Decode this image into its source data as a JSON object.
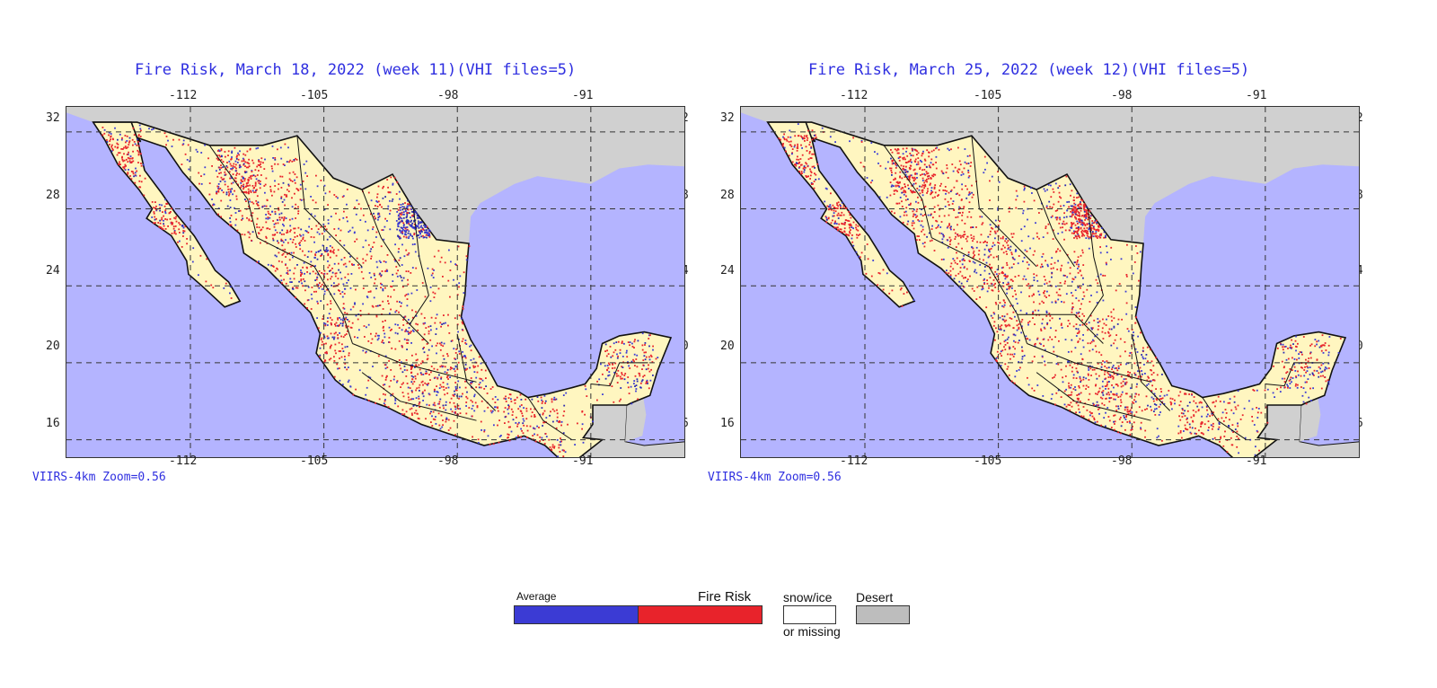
{
  "maps": [
    {
      "title": "Fire Risk, March 18, 2022 (week 11)(VHI files=5)",
      "footnote": "VIIRS-4km Zoom=0.56",
      "lon_ticks": [
        "-112",
        "-105",
        "-98",
        "-91"
      ],
      "lat_ticks": [
        "32",
        "28",
        "24",
        "20",
        "16"
      ]
    },
    {
      "title": "Fire Risk, March 25, 2022 (week 12)(VHI files=5)",
      "footnote": "VIIRS-4km Zoom=0.56",
      "lon_ticks": [
        "-112",
        "-105",
        "-98",
        "-91"
      ],
      "lat_ticks": [
        "32",
        "28",
        "24",
        "20",
        "16"
      ]
    }
  ],
  "map_extent": {
    "lon_min": -118.5,
    "lon_max": -86.0,
    "lat_min": 15.0,
    "lat_max": 33.3
  },
  "colors": {
    "water": "#b4b4ff",
    "land": "#fff6c0",
    "desert": "#d0d0d0",
    "average": "#3b3bd4",
    "fire_risk": "#e8232b",
    "snow_ice": "#ffffff"
  },
  "legend": {
    "average": "Average",
    "fire_risk": "Fire Risk",
    "snow_ice": "snow/ice",
    "or_missing": "or missing",
    "desert": "Desert"
  }
}
